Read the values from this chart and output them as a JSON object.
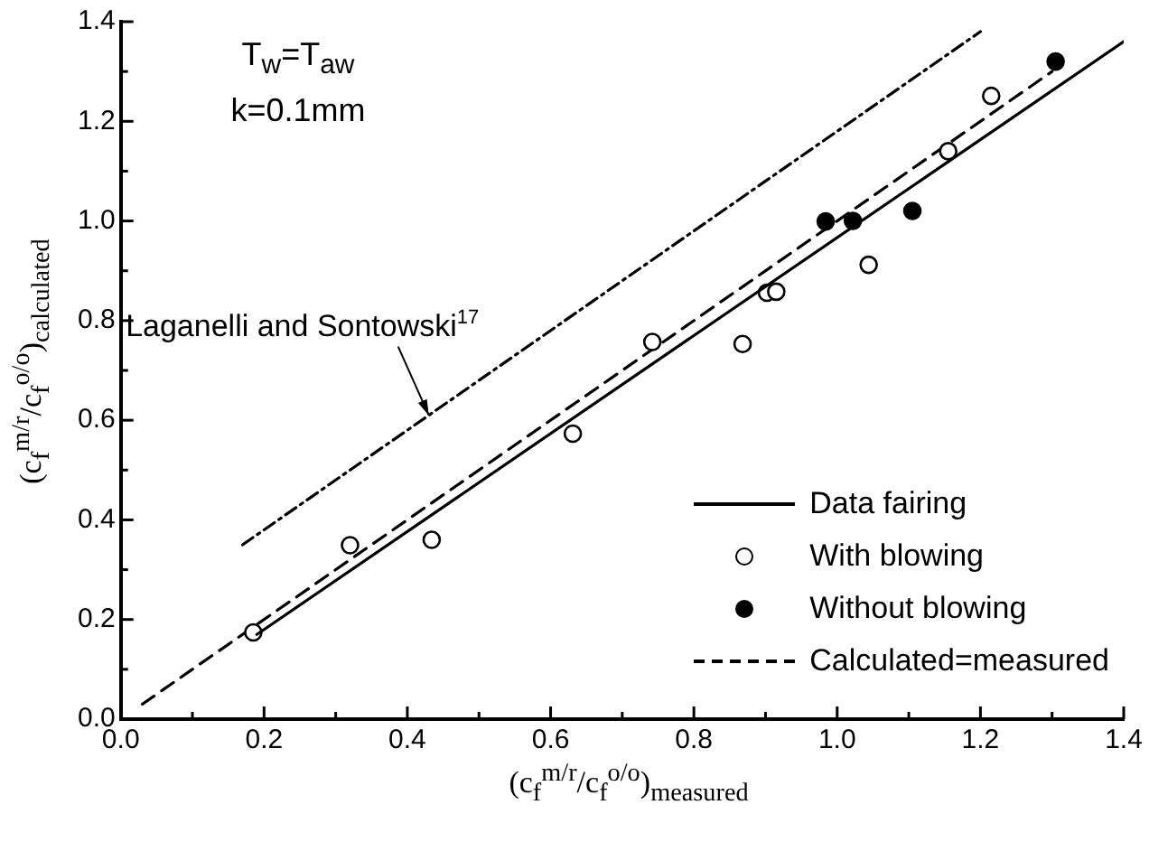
{
  "chart_data": {
    "type": "scatter",
    "xlabel": "(c$_{f}$$^{m/r}$/c$_{f}$$^{o/o}$)$_{measured}$",
    "ylabel": "(c$_{f}$$^{m/r}$/c$_{f}$$^{o/o}$)$_{calculated}$",
    "annotations": [
      "T$_{w}$=T$_{aw}$",
      "k=0.1mm",
      {
        "text": "Laganelli and Sontowski$^{17}$",
        "x": 0.43,
        "y": 0.61
      }
    ],
    "xlim": [
      0,
      1.4
    ],
    "ylim": [
      0,
      1.4
    ],
    "xticks": [
      {
        "value": 0,
        "label": "0.0"
      },
      {
        "value": 0.1,
        "label": null
      },
      {
        "value": 0.2,
        "label": "0.2"
      },
      {
        "value": 0.3,
        "label": null
      },
      {
        "value": 0.4,
        "label": "0.4"
      },
      {
        "value": 0.5,
        "label": null
      },
      {
        "value": 0.6,
        "label": "0.6"
      },
      {
        "value": 0.7,
        "label": null
      },
      {
        "value": 0.8,
        "label": "0.8"
      },
      {
        "value": 0.9,
        "label": null
      },
      {
        "value": 1,
        "label": "1.0"
      },
      {
        "value": 1.1,
        "label": null
      },
      {
        "value": 1.2,
        "label": "1.2"
      },
      {
        "value": 1.3,
        "label": null
      },
      {
        "value": 1.4,
        "label": "1.4"
      }
    ],
    "yticks": [
      {
        "value": 0,
        "label": "0.0"
      },
      {
        "value": 0.1,
        "label": null
      },
      {
        "value": 0.2,
        "label": "0.2"
      },
      {
        "value": 0.3,
        "label": null
      },
      {
        "value": 0.4,
        "label": "0.4"
      },
      {
        "value": 0.5,
        "label": null
      },
      {
        "value": 0.6,
        "label": "0.6"
      },
      {
        "value": 0.7,
        "label": null
      },
      {
        "value": 0.8,
        "label": "0.8"
      },
      {
        "value": 0.9,
        "label": null
      },
      {
        "value": 1,
        "label": "1.0"
      },
      {
        "value": 1.1,
        "label": null
      },
      {
        "value": 1.2,
        "label": "1.2"
      },
      {
        "value": 1.3,
        "label": null
      },
      {
        "value": 1.4,
        "label": "1.4"
      }
    ],
    "legend": "bottom right",
    "series": [
      {
        "name": "Data fairing",
        "type": "line",
        "x": [
          0.19,
          1.4
        ],
        "values": [
          0.17,
          1.36
        ],
        "color": "#000000",
        "line_style": "solid",
        "marker": "none"
      },
      {
        "name": "With blowing",
        "x": [
          0.185,
          0.32,
          0.434,
          0.631,
          0.742,
          0.868,
          0.902,
          0.915,
          1.044,
          1.155,
          1.215
        ],
        "values": [
          0.174,
          0.349,
          0.36,
          0.573,
          0.757,
          0.753,
          0.856,
          0.858,
          0.912,
          1.14,
          1.251
        ],
        "color": "#ffffff",
        "marker": "circle"
      },
      {
        "name": "Without blowing",
        "x": [
          0.984,
          1.022,
          1.105,
          1.305
        ],
        "values": [
          0.999,
          1.0,
          1.02,
          1.32
        ],
        "color": "#000000",
        "marker": "circle"
      },
      {
        "name": "Calculated=measured",
        "type": "line",
        "x": [
          0.03,
          1.3
        ],
        "values": [
          0.03,
          1.3
        ],
        "color": "#000000",
        "line_style": "dashed",
        "marker": "none"
      },
      {
        "type": "line",
        "x": [
          0.17,
          1.2
        ],
        "values": [
          0.35,
          1.38
        ],
        "color": "#000000",
        "line_style": "dashdot",
        "marker": "none"
      }
    ]
  }
}
